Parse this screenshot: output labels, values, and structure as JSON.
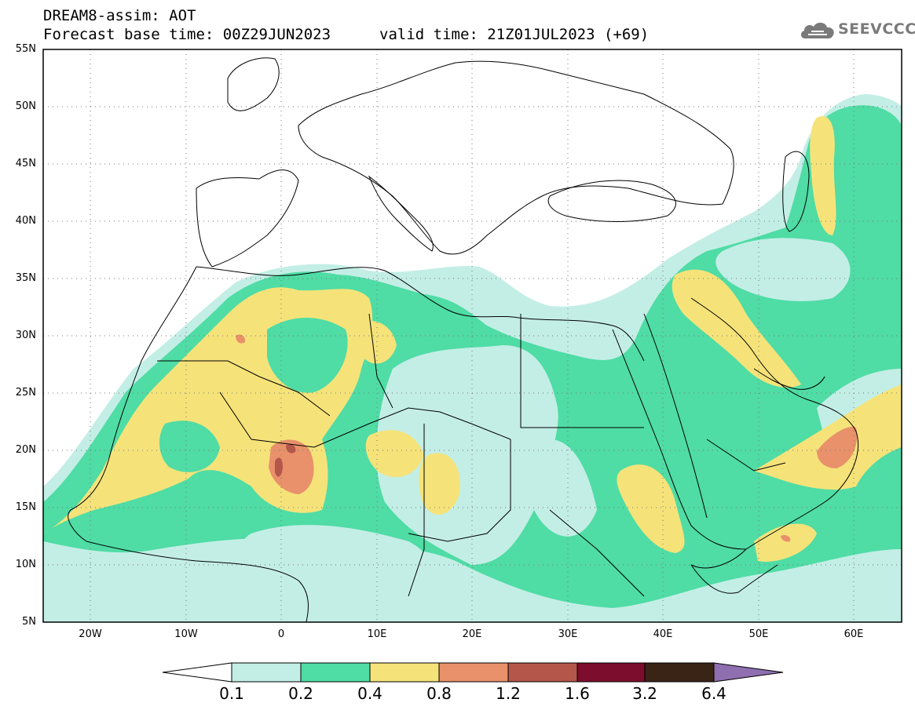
{
  "header": {
    "line1": "DREAM8-assim: AOT",
    "line2": "Forecast base time: 00Z29JUN2023",
    "valid": "valid time: 21Z01JUL2023 (+69)"
  },
  "logo": {
    "text": "SEEVCCC",
    "icon": "cloud-icon"
  },
  "map": {
    "lat_labels": [
      "55N",
      "50N",
      "45N",
      "40N",
      "35N",
      "30N",
      "25N",
      "20N",
      "15N",
      "10N",
      "5N"
    ],
    "lon_labels": [
      "20W",
      "10W",
      "0",
      "10E",
      "20E",
      "30E",
      "40E",
      "50E",
      "60E"
    ],
    "lat_range": [
      5,
      55
    ],
    "lon_range": [
      -25,
      65
    ],
    "grid": "dotted"
  },
  "colorbar": {
    "levels": [
      "0.1",
      "0.2",
      "0.4",
      "0.8",
      "1.2",
      "1.6",
      "3.2",
      "6.4"
    ],
    "colors": [
      "#c3eee6",
      "#4fdca5",
      "#f5e37a",
      "#e8916a",
      "#b5564a",
      "#7d0d2d",
      "#3a2416",
      "#8f6fb0"
    ]
  },
  "colors": {
    "c1": "#c3eee6",
    "c2": "#4fdca5",
    "c3": "#f5e37a",
    "c4": "#e8916a",
    "c5": "#b5564a"
  }
}
